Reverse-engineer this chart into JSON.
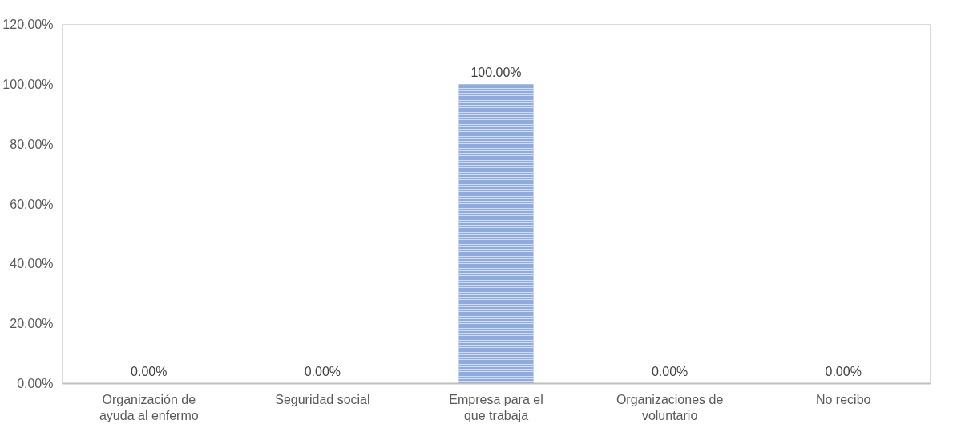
{
  "chart_data": {
    "type": "bar",
    "categories": [
      "Organización de ayuda al enfermo",
      "Seguridad social",
      "Empresa para el que trabaja",
      "Organizaciones de voluntario",
      "No recibo"
    ],
    "values": [
      0,
      0,
      100,
      0,
      0
    ],
    "value_labels": [
      "0.00%",
      "0.00%",
      "100.00%",
      "0.00%",
      "0.00%"
    ],
    "color": "#8faadc",
    "ylim": [
      0,
      120
    ],
    "yticks": [
      {
        "value": 0,
        "label": "0.00%"
      },
      {
        "value": 20,
        "label": "20.00%"
      },
      {
        "value": 40,
        "label": "40.00%"
      },
      {
        "value": 60,
        "label": "60.00%"
      },
      {
        "value": 80,
        "label": "80.00%"
      },
      {
        "value": 100,
        "label": "100.00%"
      },
      {
        "value": 120,
        "label": "120.00%"
      }
    ],
    "grid": false
  }
}
